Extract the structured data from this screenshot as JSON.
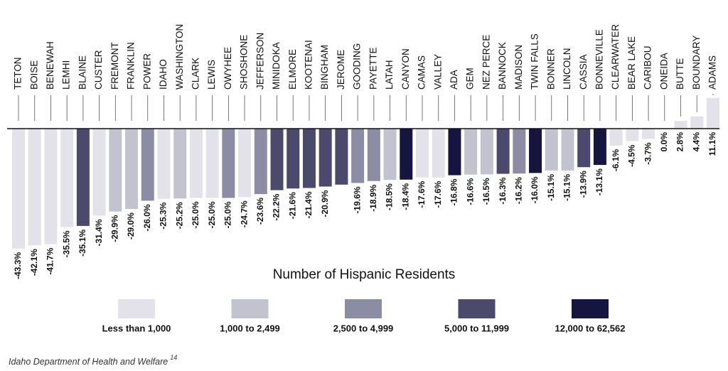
{
  "chart_data": {
    "type": "bar",
    "categories": [
      "TETON",
      "BOISE",
      "BENEWAH",
      "LEMHI",
      "BLAINE",
      "CUSTER",
      "FREMONT",
      "FRANKLIN",
      "POWER",
      "IDAHO",
      "WASHINGTON",
      "CLARK",
      "LEWIS",
      "OWYHEE",
      "SHOSHONE",
      "JEFFERSON",
      "MINIDOKA",
      "ELMORE",
      "KOOTENAI",
      "BINGHAM",
      "JEROME",
      "GOODING",
      "PAYETTE",
      "LATAH",
      "CANYON",
      "CAMAS",
      "VALLEY",
      "ADA",
      "GEM",
      "NEZ PERCE",
      "BANNOCK",
      "MADISON",
      "TWIN FALLS",
      "BONNER",
      "LINCOLN",
      "CASSIA",
      "BONNEVILLE",
      "CLEARWATER",
      "BEAR LAKE",
      "CARIBOU",
      "ONEIDA",
      "BUTTE",
      "BOUNDARY",
      "ADAMS"
    ],
    "values": [
      -43.3,
      -42.1,
      -41.7,
      -35.5,
      -35.1,
      -31.4,
      -29.9,
      -29.0,
      -26.0,
      -25.3,
      -25.2,
      -25.0,
      -25.0,
      -25.0,
      -24.7,
      -23.6,
      -22.2,
      -21.6,
      -21.4,
      -20.9,
      -20.2,
      -19.6,
      -18.9,
      -18.5,
      -18.4,
      -17.6,
      -17.6,
      -16.8,
      -16.6,
      -16.5,
      -16.3,
      -16.2,
      -16.0,
      -15.1,
      -15.1,
      -13.9,
      -13.1,
      -6.1,
      -4.5,
      -3.7,
      0.0,
      2.8,
      4.4,
      11.1
    ],
    "value_labels": [
      "-43.3%",
      "-42.1%",
      "-41.7%",
      "-35.5%",
      "-35.1%",
      "-31.4%",
      "-29.9%",
      "-29.0%",
      "-26.0%",
      "-25.3%",
      "-25.2%",
      "-25.0%",
      "-25.0%",
      "-25.0%",
      "-24.7%",
      "-23.6%",
      "-22.2%",
      "-21.6%",
      "-21.4%",
      "-20.9%",
      null,
      "-19.6%",
      "-18.9%",
      "-18.5%",
      "-18.4%",
      "-17.6%",
      "-17.6%",
      "-16.8%",
      "-16.6%",
      "-16.5%",
      "-16.3%",
      "-16.2%",
      "-16.0%",
      "-15.1%",
      "-15.1%",
      "-13.9%",
      "-13.1%",
      "-6.1%",
      "-4.5%",
      "-3.7%",
      "0.0%",
      "2.8%",
      "4.4%",
      "11.1%"
    ],
    "colors": [
      "#e3e2ea",
      "#e3e2ea",
      "#e3e2ea",
      "#e3e2ea",
      "#4b4a6c",
      "#e3e2ea",
      "#c3c2cf",
      "#c3c2cf",
      "#8d8ca5",
      "#e3e2ea",
      "#c3c2cf",
      "#e3e2ea",
      "#e3e2ea",
      "#8d8ca5",
      "#e3e2ea",
      "#8d8ca5",
      "#4b4a6c",
      "#4b4a6c",
      "#4b4a6c",
      "#4b4a6c",
      "#4b4a6c",
      "#8d8ca5",
      "#8d8ca5",
      "#c3c2cf",
      "#15153f",
      "#e3e2ea",
      "#e3e2ea",
      "#15153f",
      "#c3c2cf",
      "#c3c2cf",
      "#4b4a6c",
      "#8d8ca5",
      "#15153f",
      "#c3c2cf",
      "#c3c2cf",
      "#4b4a6c",
      "#15153f",
      "#e3e2ea",
      "#e3e2ea",
      "#e3e2ea",
      "#e3e2ea",
      "#e3e2ea",
      "#e3e2ea",
      "#e3e2ea"
    ],
    "legend": {
      "title": "Number of Hispanic Residents",
      "items": [
        {
          "label": "Less than 1,000",
          "color": "#e3e2ea"
        },
        {
          "label": "1,000 to 2,499",
          "color": "#c3c2cf"
        },
        {
          "label": "2,500 to 4,999",
          "color": "#8d8ca5"
        },
        {
          "label": "5,000 to 11,999",
          "color": "#4b4a6c"
        },
        {
          "label": "12,000 to 62,562",
          "color": "#15153f"
        }
      ]
    },
    "source": "Idaho Department of Health and Welfare",
    "source_note": "14"
  }
}
